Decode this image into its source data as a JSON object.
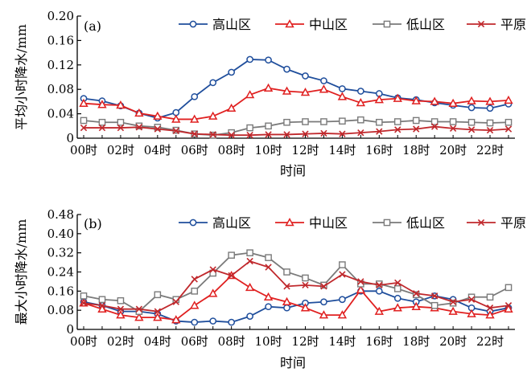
{
  "chart_data": [
    {
      "type": "line",
      "panel_label": "(a)",
      "xlabel": "时间",
      "ylabel": "平均小时降水/mm",
      "ylim": [
        0,
        0.2
      ],
      "yticks": [
        "0",
        "0.04",
        "0.08",
        "0.12",
        "0.16",
        "0.20"
      ],
      "x": [
        "00时",
        "01时",
        "02时",
        "03时",
        "04时",
        "05时",
        "06时",
        "07时",
        "08时",
        "09时",
        "10时",
        "11时",
        "12时",
        "13时",
        "14时",
        "15时",
        "16时",
        "17时",
        "18时",
        "19时",
        "20时",
        "21时",
        "22时",
        "23时"
      ],
      "xtick_labels": [
        "00时",
        "02时",
        "04时",
        "06时",
        "08时",
        "10时",
        "12时",
        "14时",
        "16时",
        "18时",
        "20时",
        "22时"
      ],
      "legend_position": "top-right",
      "series": [
        {
          "name": "高山区",
          "color": "#1f4e9c",
          "marker": "circle",
          "values": [
            0.065,
            0.061,
            0.053,
            0.041,
            0.033,
            0.042,
            0.068,
            0.091,
            0.108,
            0.129,
            0.128,
            0.113,
            0.102,
            0.094,
            0.081,
            0.077,
            0.073,
            0.066,
            0.063,
            0.058,
            0.054,
            0.05,
            0.049,
            0.056
          ]
        },
        {
          "name": "中山区",
          "color": "#e02020",
          "marker": "triangle",
          "values": [
            0.057,
            0.055,
            0.054,
            0.041,
            0.036,
            0.031,
            0.031,
            0.036,
            0.049,
            0.071,
            0.082,
            0.077,
            0.075,
            0.08,
            0.068,
            0.058,
            0.063,
            0.065,
            0.061,
            0.06,
            0.057,
            0.061,
            0.06,
            0.062
          ]
        },
        {
          "name": "低山区",
          "color": "#7a7a7a",
          "marker": "square",
          "values": [
            0.029,
            0.026,
            0.026,
            0.02,
            0.018,
            0.013,
            0.007,
            0.005,
            0.009,
            0.017,
            0.02,
            0.026,
            0.027,
            0.027,
            0.028,
            0.03,
            0.026,
            0.027,
            0.029,
            0.027,
            0.027,
            0.026,
            0.025,
            0.026
          ]
        },
        {
          "name": "平原区",
          "color": "#c0282c",
          "marker": "x",
          "values": [
            0.017,
            0.017,
            0.017,
            0.018,
            0.015,
            0.012,
            0.007,
            0.006,
            0.005,
            0.005,
            0.006,
            0.006,
            0.007,
            0.008,
            0.007,
            0.009,
            0.011,
            0.014,
            0.015,
            0.019,
            0.016,
            0.014,
            0.013,
            0.015
          ]
        }
      ]
    },
    {
      "type": "line",
      "panel_label": "(b)",
      "xlabel": "时间",
      "ylabel": "最大小时降水/mm",
      "ylim": [
        0,
        0.48
      ],
      "yticks": [
        "0",
        "0.08",
        "0.16",
        "0.24",
        "0.32",
        "0.40",
        "0.48"
      ],
      "x": [
        "00时",
        "01时",
        "02时",
        "03时",
        "04时",
        "05时",
        "06时",
        "07时",
        "08时",
        "09时",
        "10时",
        "11时",
        "12时",
        "13时",
        "14时",
        "15时",
        "16时",
        "17时",
        "18时",
        "19时",
        "20时",
        "21时",
        "22时",
        "23时"
      ],
      "xtick_labels": [
        "00时",
        "02时",
        "04时",
        "06时",
        "08时",
        "10时",
        "12时",
        "14时",
        "16时",
        "18时",
        "20时",
        "22时"
      ],
      "legend_position": "top-right",
      "series": [
        {
          "name": "高山区",
          "color": "#1f4e9c",
          "marker": "circle",
          "values": [
            0.115,
            0.1,
            0.075,
            0.075,
            0.065,
            0.035,
            0.03,
            0.035,
            0.03,
            0.055,
            0.095,
            0.09,
            0.11,
            0.115,
            0.125,
            0.16,
            0.16,
            0.13,
            0.115,
            0.14,
            0.125,
            0.09,
            0.075,
            0.09
          ]
        },
        {
          "name": "中山区",
          "color": "#e02020",
          "marker": "triangle",
          "values": [
            0.11,
            0.085,
            0.06,
            0.05,
            0.05,
            0.04,
            0.1,
            0.15,
            0.225,
            0.175,
            0.135,
            0.115,
            0.09,
            0.06,
            0.06,
            0.165,
            0.075,
            0.09,
            0.095,
            0.09,
            0.075,
            0.065,
            0.06,
            0.085
          ]
        },
        {
          "name": "低山区",
          "color": "#7a7a7a",
          "marker": "square",
          "values": [
            0.14,
            0.125,
            0.12,
            0.075,
            0.145,
            0.125,
            0.16,
            0.235,
            0.31,
            0.32,
            0.3,
            0.24,
            0.215,
            0.185,
            0.27,
            0.19,
            0.19,
            0.17,
            0.145,
            0.1,
            0.11,
            0.135,
            0.135,
            0.175
          ]
        },
        {
          "name": "平原区",
          "color": "#c0282c",
          "marker": "x",
          "values": [
            0.11,
            0.1,
            0.085,
            0.085,
            0.075,
            0.115,
            0.21,
            0.25,
            0.225,
            0.285,
            0.26,
            0.18,
            0.185,
            0.18,
            0.23,
            0.2,
            0.185,
            0.195,
            0.15,
            0.14,
            0.115,
            0.125,
            0.09,
            0.1
          ]
        }
      ]
    }
  ]
}
